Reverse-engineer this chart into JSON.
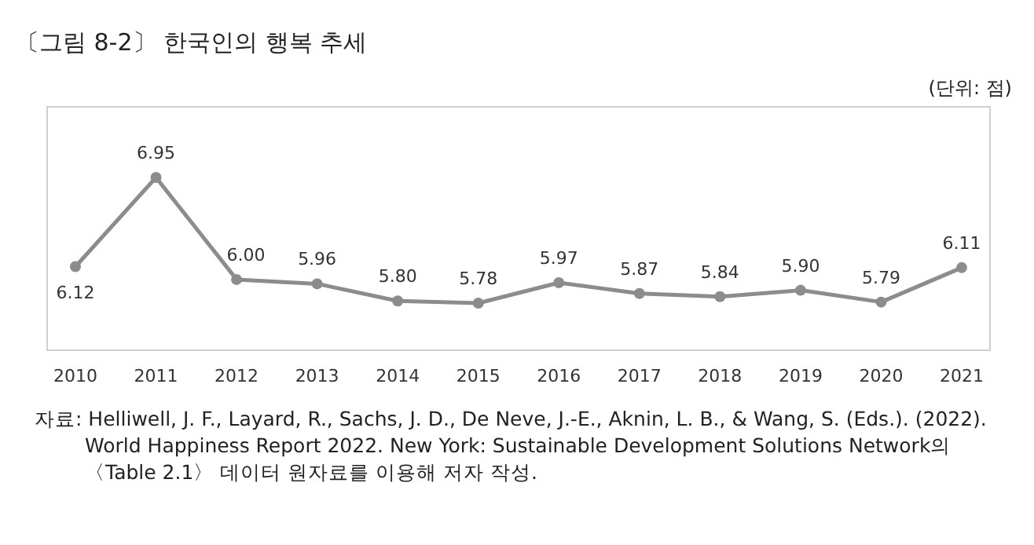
{
  "chart_data": {
    "type": "line",
    "title": "〔그림 8-2〕 한국인의 행복 추세",
    "subtitle": "(단위: 점)",
    "categories": [
      "2010",
      "2011",
      "2012",
      "2013",
      "2014",
      "2015",
      "2016",
      "2017",
      "2018",
      "2019",
      "2020",
      "2021"
    ],
    "series": [
      {
        "color": "#8c8c8c",
        "values": [
          6.12,
          6.95,
          6.0,
          5.96,
          5.8,
          5.78,
          5.97,
          5.87,
          5.84,
          5.9,
          5.79,
          6.11
        ],
        "value_labels": [
          "6.12",
          "6.95",
          "6.00",
          "5.96",
          "5.80",
          "5.78",
          "5.97",
          "5.87",
          "5.84",
          "5.90",
          "5.79",
          "6.11"
        ]
      }
    ],
    "marker": "circle",
    "line_style": "solid",
    "annotations": [
      "자료: Helliwell, J. F., Layard, R., Sachs, J. D., De Neve, J.-E., Aknin, L. B., & Wang, S. (Eds.). (2022). World Happiness Report 2022. New York: Sustainable Development Solutions Network의 〈Table 2.1〉 데이터 원자료를 이용해 저자 작성."
    ]
  }
}
